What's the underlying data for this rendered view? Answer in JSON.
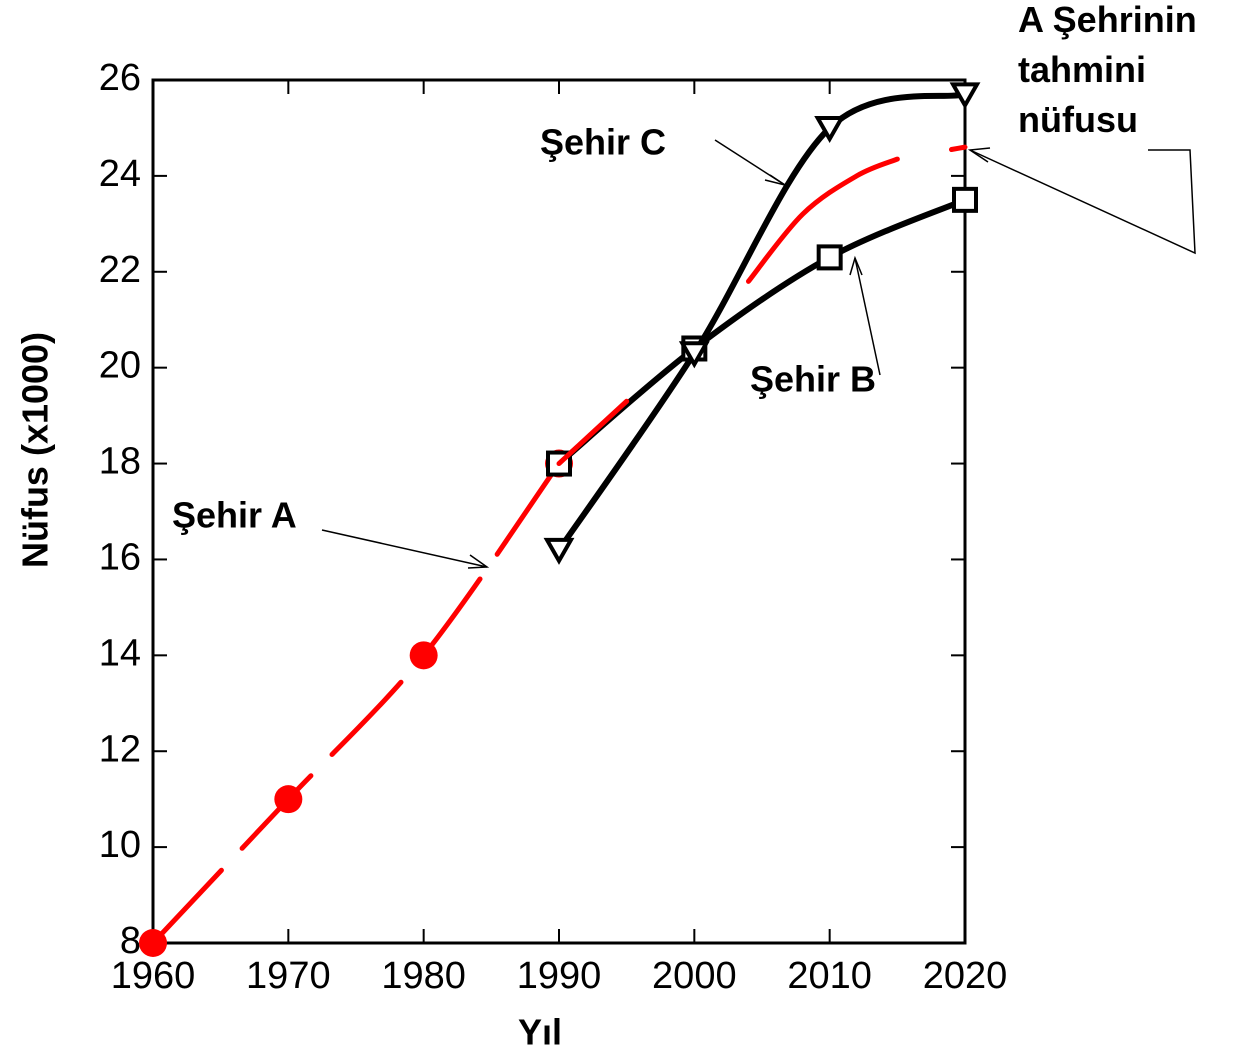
{
  "chart_data": {
    "type": "line",
    "x_label": "Yıl",
    "y_label": "Nüfus (x1000)",
    "xlim": [
      1960,
      2020
    ],
    "ylim": [
      8,
      26
    ],
    "xticks": [
      1960,
      1970,
      1980,
      1990,
      2000,
      2010,
      2020
    ],
    "yticks": [
      8,
      10,
      12,
      14,
      16,
      18,
      20,
      22,
      24,
      26
    ],
    "series": [
      {
        "name": "Şehir A",
        "color": "#ff0000",
        "marker": "circle",
        "dashed": true,
        "x": [
          1960,
          1970,
          1980,
          1990
        ],
        "values": [
          8,
          11,
          14,
          18
        ]
      },
      {
        "name": "Şehir B",
        "color": "#000000",
        "marker": "square",
        "dashed": false,
        "x": [
          1990,
          2000,
          2010,
          2020
        ],
        "values": [
          18,
          20.4,
          22.3,
          23.5
        ]
      },
      {
        "name": "Şehir C",
        "color": "#000000",
        "marker": "triangle-down",
        "dashed": false,
        "x": [
          1990,
          2000,
          2010,
          2020
        ],
        "values": [
          16.2,
          20.3,
          25,
          25.7
        ]
      },
      {
        "name": "A Şehrinin tahmini nüfusu",
        "color": "#ff0000",
        "marker": "none",
        "dashed": false,
        "x": [
          1990,
          1995,
          2000,
          2004,
          2008,
          2012,
          2015,
          2017,
          2019,
          2020
        ],
        "values": [
          18,
          19.3,
          null,
          21.8,
          23.2,
          24.0,
          24.35,
          null,
          24.55,
          24.6
        ]
      }
    ]
  }
}
